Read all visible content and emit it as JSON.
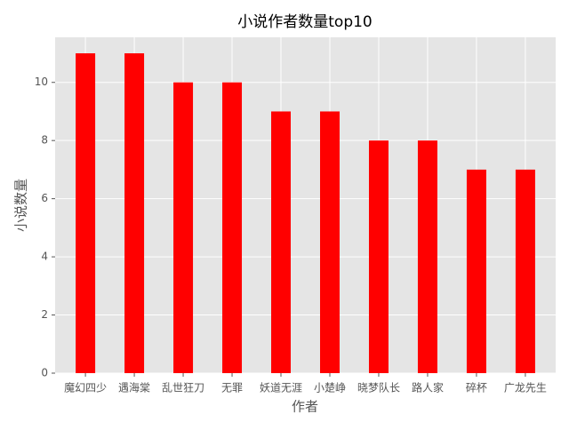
{
  "chart_data": {
    "type": "bar",
    "title": "小说作者数量top10",
    "x_label": "作者",
    "y_label": "小说数量",
    "categories": [
      "魔幻四少",
      "遇海棠",
      "乱世狂刀",
      "无罪",
      "妖道无涯",
      "小楚峥",
      "晓梦队长",
      "路人家",
      "碎杯",
      "广龙先生"
    ],
    "values": [
      11,
      11,
      10,
      10,
      9,
      9,
      8,
      8,
      7,
      7
    ],
    "color": "#ff0000",
    "ylim": [
      0,
      11.55
    ],
    "yticks": [
      0,
      2,
      4,
      6,
      8,
      10
    ],
    "grid": true
  }
}
